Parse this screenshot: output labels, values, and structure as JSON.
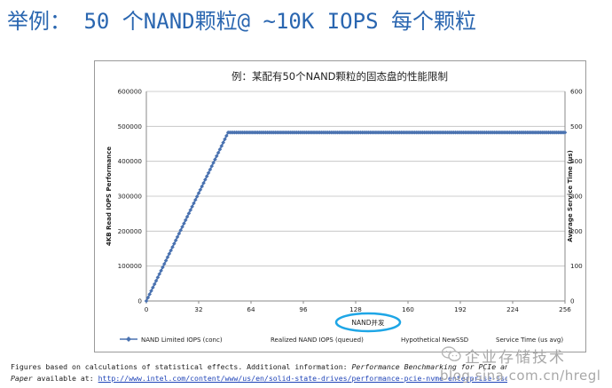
{
  "slide": {
    "title": "举例： 50 个NAND颗粒@ ~10K IOPS 每个颗粒"
  },
  "footer": {
    "line1_text": "Figures based on calculations of statistical effects.  Additional information:  ",
    "line1_emph": "Performance Benchmarking for PCIe and NVMe Enterprise SSDs",
    "line2_emph": "Paper",
    "line2_text": " available at: ",
    "line2_link": "http://www.intel.com/content/www/us/en/solid-state-drives/performance-pcie-nvme-enterprise-ssds-white-paper.html"
  },
  "watermark": {
    "line1": "企业存储技术",
    "line2": "blog.sina.com.cn/hregl",
    "icon": "wechat-icon"
  },
  "annotation": {
    "color": "#1ea6e6"
  },
  "chart_data": {
    "type": "line",
    "title": "例：某配有50个NAND颗粒的固态盘的性能限制",
    "xlabel": "NAND并发",
    "ylabel": "4KB Read IOPS Performance",
    "y2label": "Average Service Time (us)",
    "xlim": [
      0,
      256
    ],
    "ylim": [
      0,
      600000
    ],
    "y2lim": [
      0,
      600
    ],
    "x_ticks": [
      0,
      32,
      64,
      96,
      128,
      160,
      192,
      224,
      256
    ],
    "y_ticks": [
      0,
      100000,
      200000,
      300000,
      400000,
      500000,
      600000
    ],
    "y_tick_labels": [
      "0",
      "100000",
      "200000",
      "300000",
      "400000",
      "500000",
      "600000"
    ],
    "y2_ticks": [
      0,
      100,
      200,
      300,
      400,
      500,
      600
    ],
    "y2_tick_labels": [
      "0",
      "100",
      "200",
      "300",
      "400",
      "500",
      "600"
    ],
    "grid": true,
    "legend": {
      "position": "bottom",
      "entries": [
        "NAND Limited IOPS (conc)",
        "Realized NAND IOPS (queued)",
        "Hypothetical NewSSD",
        "Service Time (us avg)"
      ]
    },
    "series": [
      {
        "name": "NAND Limited IOPS (conc)",
        "color": "#4a72b0",
        "marker": "diamond",
        "rule": "min(x*10000, 500000)",
        "x_max": 256
      }
    ]
  }
}
